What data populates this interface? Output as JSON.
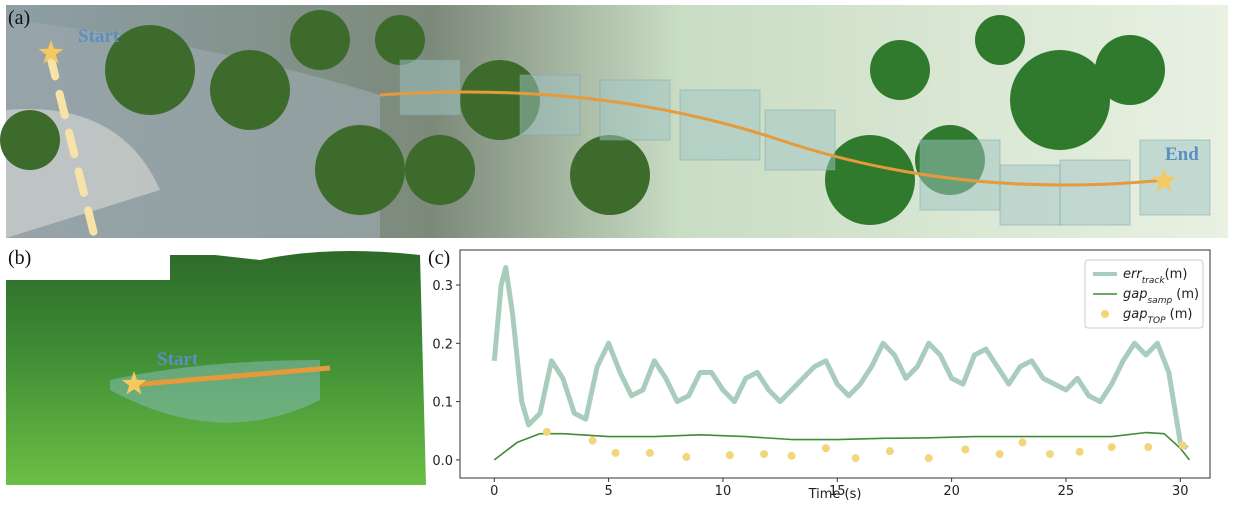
{
  "panels": {
    "a": {
      "label": "(a)",
      "start": "Start",
      "end": "End"
    },
    "b": {
      "label": "(b)",
      "start": "Start"
    }
  },
  "chart_data": {
    "type": "line",
    "panel_label": "(c)",
    "xlabel": "Time (s)",
    "xlim": [
      -1.5,
      31.3
    ],
    "ylim": [
      -0.031,
      0.36
    ],
    "xticks": [
      0,
      5,
      10,
      15,
      20,
      25,
      30
    ],
    "yticks": [
      {
        "value": 0,
        "label": "0.0"
      },
      0.1,
      0.2,
      0.3
    ],
    "legend": "upper right",
    "series": [
      {
        "type": "line",
        "name": "err",
        "subscript": "track",
        "unit": "(m)",
        "color": "#a9cdbd",
        "width": 5,
        "x": [
          0,
          0.3,
          0.5,
          0.8,
          1.2,
          1.5,
          2,
          2.5,
          3,
          3.5,
          4,
          4.5,
          5,
          5.5,
          6,
          6.5,
          7,
          7.5,
          8,
          8.5,
          9,
          9.5,
          10,
          10.5,
          11,
          11.5,
          12,
          12.5,
          13,
          13.5,
          14,
          14.5,
          15,
          15.5,
          16,
          16.5,
          17,
          17.5,
          18,
          18.5,
          19,
          19.5,
          20,
          20.5,
          21,
          21.5,
          22,
          22.5,
          23,
          23.5,
          24,
          24.5,
          25,
          25.5,
          26,
          26.5,
          27,
          27.5,
          28,
          28.5,
          29,
          29.5,
          30,
          30.3
        ],
        "values": [
          0.17,
          0.3,
          0.33,
          0.25,
          0.1,
          0.06,
          0.08,
          0.17,
          0.14,
          0.08,
          0.07,
          0.16,
          0.2,
          0.15,
          0.11,
          0.12,
          0.17,
          0.14,
          0.1,
          0.11,
          0.15,
          0.15,
          0.12,
          0.1,
          0.14,
          0.15,
          0.12,
          0.1,
          0.12,
          0.14,
          0.16,
          0.17,
          0.13,
          0.11,
          0.13,
          0.16,
          0.2,
          0.18,
          0.14,
          0.16,
          0.2,
          0.18,
          0.14,
          0.13,
          0.18,
          0.19,
          0.16,
          0.13,
          0.16,
          0.17,
          0.14,
          0.13,
          0.12,
          0.14,
          0.11,
          0.1,
          0.13,
          0.17,
          0.2,
          0.18,
          0.2,
          0.15,
          0.03,
          0.02
        ]
      },
      {
        "type": "line",
        "name": "gap",
        "subscript": "samp",
        "unit": " (m)",
        "color": "#3f8c34",
        "width": 1.6,
        "x": [
          0,
          1,
          2,
          3,
          5,
          7,
          9,
          11,
          13,
          15,
          17,
          19,
          21,
          23,
          25,
          27,
          28.5,
          29.3,
          30,
          30.4
        ],
        "values": [
          0,
          0.03,
          0.045,
          0.045,
          0.04,
          0.04,
          0.043,
          0.04,
          0.035,
          0.035,
          0.037,
          0.038,
          0.04,
          0.04,
          0.04,
          0.04,
          0.047,
          0.045,
          0.02,
          0
        ]
      },
      {
        "type": "scatter",
        "name": "gap",
        "subscript": "TOP",
        "unit": " (m)",
        "color": "#f3d67c",
        "x": [
          2.3,
          4.3,
          5.3,
          6.8,
          8.4,
          10.3,
          11.8,
          13,
          14.5,
          15.8,
          17.3,
          19,
          20.6,
          22.1,
          23.1,
          24.3,
          25.6,
          27,
          28.6,
          30.1
        ],
        "values": [
          0.048,
          0.033,
          0.012,
          0.012,
          0.005,
          0.008,
          0.01,
          0.007,
          0.02,
          0.003,
          0.015,
          0.003,
          0.018,
          0.01,
          0.03,
          0.01,
          0.014,
          0.022,
          0.022,
          0.025
        ]
      }
    ]
  }
}
